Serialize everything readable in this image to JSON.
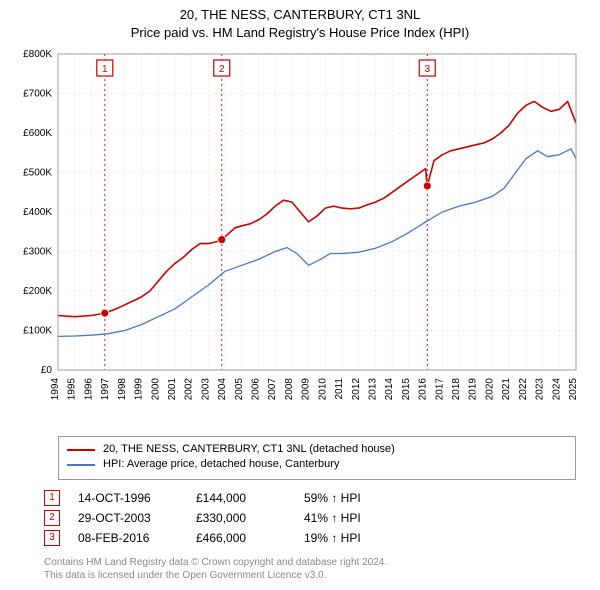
{
  "title": {
    "line1": "20, THE NESS, CANTERBURY, CT1 3NL",
    "line2": "Price paid vs. HM Land Registry's House Price Index (HPI)"
  },
  "chart": {
    "type": "line",
    "plot_bg": "#ffffff",
    "grid_color": "#e2e2e2",
    "grid_stroke": 0.6,
    "border_color": "#999999",
    "x_axis": {
      "min": 1994,
      "max": 2025,
      "tick_step": 1,
      "label_fontsize": 10,
      "label_color": "#000000"
    },
    "y_axis": {
      "min": 0,
      "max": 800000,
      "tick_step": 100000,
      "label_fontsize": 10,
      "label_color": "#000000",
      "format_prefix": "£",
      "format_suffix": "K",
      "format_divide": 1000
    },
    "series": [
      {
        "name": "price_paid",
        "color": "#cc0000",
        "width": 1.6,
        "legend": "20, THE NESS, CANTERBURY, CT1 3NL (detached house)",
        "data": [
          [
            1994.0,
            138000
          ],
          [
            1995.0,
            135000
          ],
          [
            1996.0,
            138000
          ],
          [
            1996.8,
            144000
          ],
          [
            1997.5,
            155000
          ],
          [
            1998.0,
            165000
          ],
          [
            1998.5,
            175000
          ],
          [
            1999.0,
            185000
          ],
          [
            1999.5,
            200000
          ],
          [
            2000.0,
            225000
          ],
          [
            2000.5,
            250000
          ],
          [
            2001.0,
            270000
          ],
          [
            2001.5,
            285000
          ],
          [
            2002.0,
            305000
          ],
          [
            2002.5,
            320000
          ],
          [
            2003.0,
            320000
          ],
          [
            2003.5,
            325000
          ],
          [
            2003.8,
            330000
          ],
          [
            2004.2,
            345000
          ],
          [
            2004.6,
            360000
          ],
          [
            2005.0,
            365000
          ],
          [
            2005.5,
            370000
          ],
          [
            2006.0,
            380000
          ],
          [
            2006.5,
            395000
          ],
          [
            2007.0,
            415000
          ],
          [
            2007.5,
            430000
          ],
          [
            2008.0,
            425000
          ],
          [
            2008.5,
            400000
          ],
          [
            2009.0,
            375000
          ],
          [
            2009.5,
            390000
          ],
          [
            2010.0,
            410000
          ],
          [
            2010.5,
            415000
          ],
          [
            2011.0,
            410000
          ],
          [
            2011.5,
            408000
          ],
          [
            2012.0,
            410000
          ],
          [
            2012.5,
            418000
          ],
          [
            2013.0,
            425000
          ],
          [
            2013.5,
            435000
          ],
          [
            2014.0,
            450000
          ],
          [
            2014.5,
            465000
          ],
          [
            2015.0,
            480000
          ],
          [
            2015.5,
            495000
          ],
          [
            2016.0,
            510000
          ],
          [
            2016.1,
            466000
          ],
          [
            2016.5,
            530000
          ],
          [
            2017.0,
            545000
          ],
          [
            2017.5,
            555000
          ],
          [
            2018.0,
            560000
          ],
          [
            2018.5,
            565000
          ],
          [
            2019.0,
            570000
          ],
          [
            2019.5,
            575000
          ],
          [
            2020.0,
            585000
          ],
          [
            2020.5,
            600000
          ],
          [
            2021.0,
            620000
          ],
          [
            2021.5,
            650000
          ],
          [
            2022.0,
            670000
          ],
          [
            2022.5,
            680000
          ],
          [
            2023.0,
            665000
          ],
          [
            2023.5,
            655000
          ],
          [
            2024.0,
            660000
          ],
          [
            2024.5,
            680000
          ],
          [
            2025.0,
            625000
          ]
        ]
      },
      {
        "name": "hpi",
        "color": "#4a78c4",
        "width": 1.3,
        "legend": "HPI: Average price, detached house, Canterbury",
        "data": [
          [
            1994.0,
            85000
          ],
          [
            1995.0,
            86000
          ],
          [
            1996.0,
            88000
          ],
          [
            1997.0,
            92000
          ],
          [
            1998.0,
            100000
          ],
          [
            1999.0,
            115000
          ],
          [
            2000.0,
            135000
          ],
          [
            2001.0,
            155000
          ],
          [
            2002.0,
            185000
          ],
          [
            2003.0,
            215000
          ],
          [
            2004.0,
            250000
          ],
          [
            2005.0,
            265000
          ],
          [
            2006.0,
            280000
          ],
          [
            2007.0,
            300000
          ],
          [
            2007.7,
            310000
          ],
          [
            2008.3,
            295000
          ],
          [
            2009.0,
            265000
          ],
          [
            2009.7,
            280000
          ],
          [
            2010.3,
            295000
          ],
          [
            2011.0,
            295000
          ],
          [
            2012.0,
            298000
          ],
          [
            2013.0,
            308000
          ],
          [
            2014.0,
            325000
          ],
          [
            2015.0,
            348000
          ],
          [
            2016.0,
            375000
          ],
          [
            2017.0,
            400000
          ],
          [
            2018.0,
            415000
          ],
          [
            2019.0,
            425000
          ],
          [
            2020.0,
            440000
          ],
          [
            2020.7,
            460000
          ],
          [
            2021.3,
            495000
          ],
          [
            2022.0,
            535000
          ],
          [
            2022.7,
            555000
          ],
          [
            2023.3,
            540000
          ],
          [
            2024.0,
            545000
          ],
          [
            2024.7,
            560000
          ],
          [
            2025.0,
            535000
          ]
        ]
      }
    ],
    "markers": [
      {
        "n": "1",
        "x": 1996.8,
        "y": 144000,
        "color": "#cc0000"
      },
      {
        "n": "2",
        "x": 2003.8,
        "y": 330000,
        "color": "#cc0000"
      },
      {
        "n": "3",
        "x": 2016.1,
        "y": 466000,
        "color": "#cc0000"
      }
    ],
    "marker_line_color": "#cc0000",
    "marker_line_dash": "2,3",
    "marker_box_border": "#cc0000",
    "marker_box_fill": "#ffffff",
    "marker_box_text": "#cc0000",
    "marker_dot_radius": 4
  },
  "transactions": [
    {
      "n": "1",
      "date": "14-OCT-1996",
      "price": "£144,000",
      "delta": "59% ↑ HPI"
    },
    {
      "n": "2",
      "date": "29-OCT-2003",
      "price": "£330,000",
      "delta": "41% ↑ HPI"
    },
    {
      "n": "3",
      "date": "08-FEB-2016",
      "price": "£466,000",
      "delta": "19% ↑ HPI"
    }
  ],
  "attribution": {
    "line1": "Contains HM Land Registry data © Crown copyright and database right 2024.",
    "line2": "This data is licensed under the Open Government Licence v3.0."
  }
}
